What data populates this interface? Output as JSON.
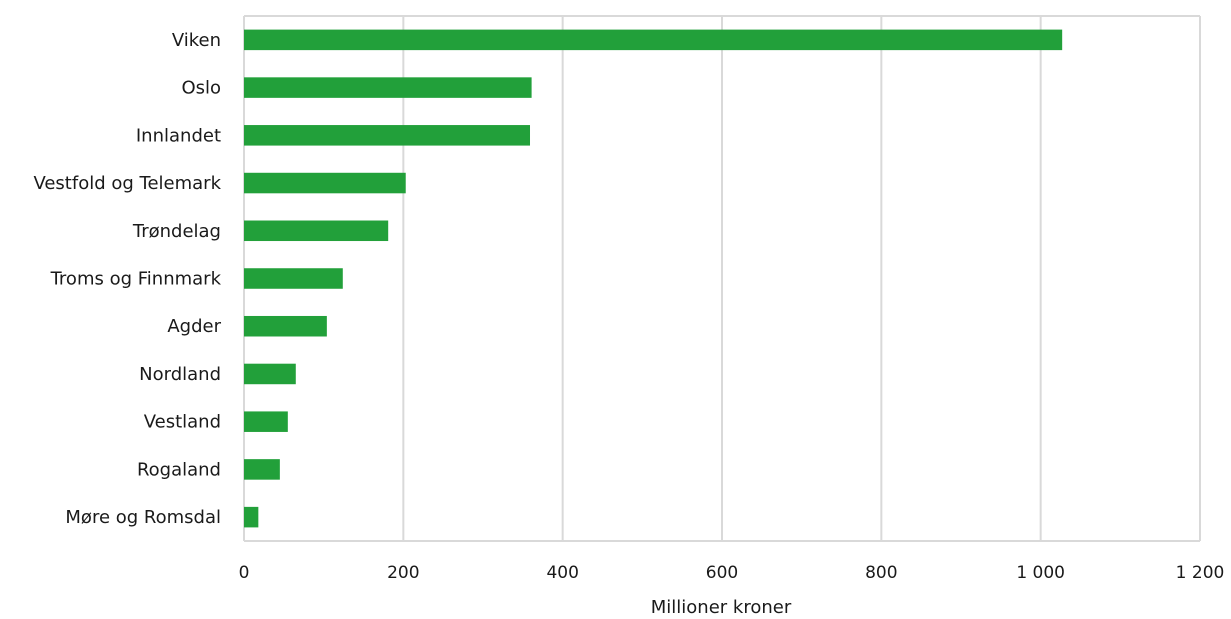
{
  "chart_data": {
    "type": "bar",
    "orientation": "horizontal",
    "categories": [
      "Viken",
      "Oslo",
      "Innlandet",
      "Vestfold og Telemark",
      "Trøndelag",
      "Troms og Finnmark",
      "Agder",
      "Nordland",
      "Vestland",
      "Rogaland",
      "Møre og Romsdal"
    ],
    "values": [
      1027,
      361,
      359,
      203,
      181,
      124,
      104,
      65,
      55,
      45,
      18
    ],
    "xlabel": "Millioner kroner",
    "xlim": [
      0,
      1200
    ],
    "xticks": [
      0,
      200,
      400,
      600,
      800,
      1000,
      1200
    ],
    "xtick_labels": [
      "0",
      "200",
      "400",
      "600",
      "800",
      "1 000",
      "1 200"
    ],
    "bar_color": "#22a03a",
    "grid_color": "#d9d9d9",
    "grid": true,
    "legend": false
  }
}
